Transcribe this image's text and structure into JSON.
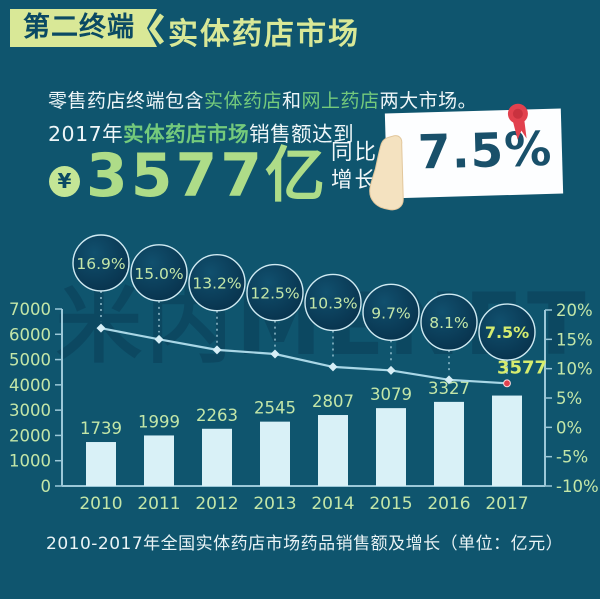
{
  "header": {
    "badge_label": "第二终端",
    "title": "实体药店市场"
  },
  "intro": {
    "segments": [
      {
        "text": "零售药店终端包含",
        "accent": false
      },
      {
        "text": "实体药店",
        "accent": true
      },
      {
        "text": "和",
        "accent": false
      },
      {
        "text": "网上药店",
        "accent": true
      },
      {
        "text": "两大市场。",
        "accent": false
      }
    ]
  },
  "stat": {
    "prefix": "2017年",
    "highlight": "实体药店市场",
    "suffix": "销售额达到",
    "currency_symbol": "¥",
    "amount": "3577",
    "amount_unit": "亿",
    "yoy_label_line1": "同比",
    "yoy_label_line2": "增长",
    "yoy_value": "7.5%"
  },
  "icons": {
    "currency": "yen-coin-icon",
    "hand": "hand-icon",
    "ribbon": "award-ribbon-icon",
    "chevron": "chevron-left-icon"
  },
  "watermark": {
    "text": "米内MENET"
  },
  "caption": "2010-2017年全国实体药店市场药品销售额及增长（单位：亿元）",
  "colors": {
    "background": "#0f556e",
    "badge": "#d9e897",
    "badge_text": "#0b4a63",
    "accent_green": "#74ca7c",
    "big_number": "#aedc88",
    "bar": "#d9f1f7",
    "chart_label": "#c3e6a8",
    "highlight": "#d6ec6f",
    "line": "#a9d7e6",
    "marker": "#d6eef6",
    "connector": "#bfe3ee",
    "axis": "#9cc8d8",
    "bubble_stroke": "#cfeaf2",
    "red": "#e2414e",
    "card_text": "#19506a"
  },
  "chart_data": {
    "type": "combo",
    "title": "2010-2017年全国实体药店市场药品销售额及增长（单位：亿元）",
    "categories": [
      "2010",
      "2011",
      "2012",
      "2013",
      "2014",
      "2015",
      "2016",
      "2017"
    ],
    "series": [
      {
        "name": "药品销售额（亿元）",
        "kind": "bar",
        "values": [
          1739,
          1999,
          2263,
          2545,
          2807,
          3079,
          3327,
          3577
        ]
      },
      {
        "name": "同比增长率",
        "kind": "line",
        "values": [
          16.9,
          15.0,
          13.2,
          12.5,
          10.3,
          9.7,
          8.1,
          7.5
        ]
      }
    ],
    "bubble_labels": [
      "16.9%",
      "15.0%",
      "13.2%",
      "12.5%",
      "10.3%",
      "9.7%",
      "8.1%",
      "7.5%"
    ],
    "left_axis": {
      "min": 0,
      "max": 7000,
      "step": 1000
    },
    "right_axis": {
      "min": -10,
      "max": 20,
      "step": 5,
      "suffix": "%"
    },
    "highlight_index": 7,
    "grid": false,
    "legend": "none"
  }
}
